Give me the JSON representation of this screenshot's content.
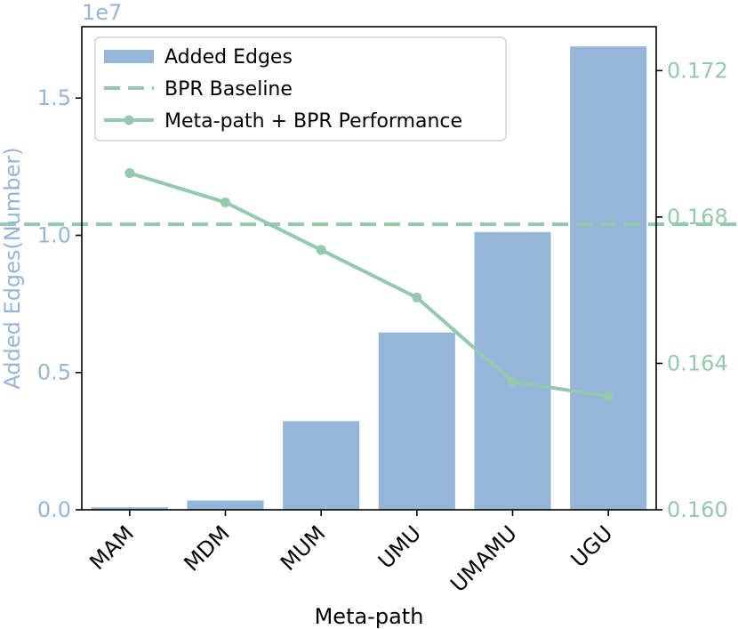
{
  "colors": {
    "bar": "#95b6d8",
    "line": "#93c9ac",
    "left_axis_text": "#95b6d8",
    "right_axis_text": "#93c9ac",
    "axis": "#000000"
  },
  "chart_data": {
    "type": "bar",
    "xlabel": "Meta-path",
    "ylabel_left": "Added Edges(Number)",
    "left_offset_label": "1e7",
    "categories": [
      "MAM",
      "MDM",
      "MUM",
      "UMU",
      "UMAMU",
      "UGU"
    ],
    "left_axis": {
      "ylim": [
        0,
        17600000
      ],
      "ticks": [
        0,
        5000000,
        10000000,
        15000000
      ],
      "tick_labels": [
        "0.0",
        "0.5",
        "1.0",
        "1.5"
      ]
    },
    "right_axis": {
      "ylim": [
        0.16,
        0.1732
      ],
      "ticks": [
        0.16,
        0.164,
        0.168,
        0.172
      ],
      "tick_labels": [
        "0.160",
        "0.164",
        "0.168",
        "0.172"
      ]
    },
    "series": [
      {
        "name": "Added Edges",
        "kind": "bar",
        "axis": "left",
        "values": [
          90000,
          340000,
          3230000,
          6460000,
          10120000,
          16880000
        ]
      },
      {
        "name": "BPR Baseline",
        "kind": "hline",
        "axis": "right",
        "value": 0.1678
      },
      {
        "name": "Meta-path + BPR Performance",
        "kind": "line",
        "axis": "right",
        "values": [
          0.1692,
          0.1684,
          0.1671,
          0.1658,
          0.1635,
          0.1631
        ]
      }
    ],
    "legend": {
      "position": "top-left",
      "entries": [
        "Added Edges",
        "BPR Baseline",
        "Meta-path + BPR Performance"
      ]
    },
    "grid": false
  }
}
